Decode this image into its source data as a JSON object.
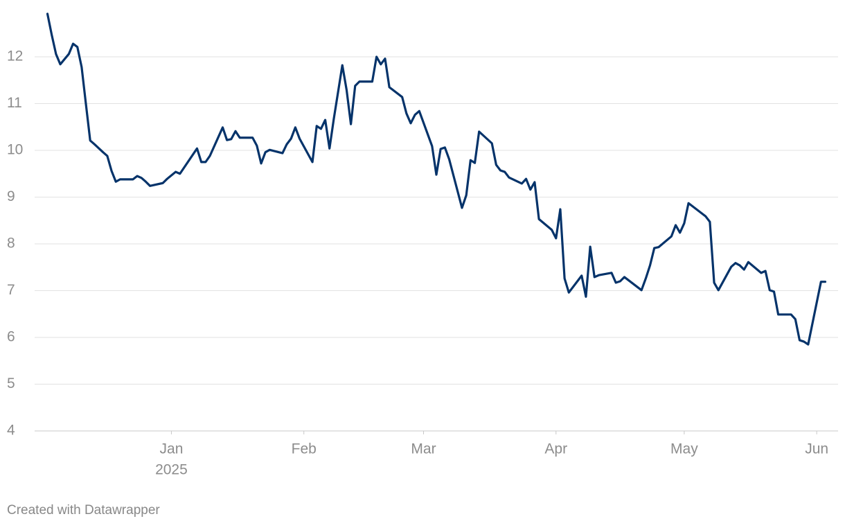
{
  "chart_data": {
    "type": "line",
    "x": [
      -29,
      -28,
      -27,
      -26,
      -24,
      -23,
      -22,
      -21,
      -20,
      -19,
      -18,
      -16,
      -15,
      -14,
      -13,
      -12,
      -11,
      -9,
      -8,
      -7,
      -6,
      -5,
      -2,
      -1,
      1,
      2,
      6,
      7,
      8,
      9,
      12,
      13,
      14,
      15,
      16,
      19,
      20,
      21,
      22,
      23,
      26,
      27,
      28,
      29,
      30,
      33,
      34,
      35,
      36,
      37,
      38,
      40,
      41,
      42,
      43,
      44,
      47,
      48,
      49,
      50,
      51,
      54,
      55,
      56,
      57,
      58,
      61,
      62,
      63,
      64,
      65,
      68,
      69,
      70,
      71,
      72,
      75,
      76,
      77,
      78,
      79,
      82,
      83,
      84,
      85,
      86,
      89,
      90,
      91,
      92,
      93,
      96,
      97,
      98,
      99,
      100,
      103,
      104,
      105,
      106,
      110,
      111,
      112,
      113,
      114,
      117,
      118,
      119,
      120,
      121,
      125,
      126,
      127,
      128,
      131,
      132,
      133,
      134,
      135,
      138,
      139,
      140,
      141,
      142,
      145,
      146,
      147,
      148,
      149,
      152,
      153
    ],
    "values": [
      12.92,
      12.47,
      12.06,
      11.84,
      12.06,
      12.28,
      12.21,
      11.78,
      10.99,
      10.21,
      10.13,
      9.96,
      9.88,
      9.56,
      9.33,
      9.38,
      9.38,
      9.38,
      9.45,
      9.41,
      9.33,
      9.24,
      9.3,
      9.39,
      9.54,
      9.5,
      10.04,
      9.75,
      9.75,
      9.88,
      10.49,
      10.22,
      10.24,
      10.41,
      10.27,
      10.27,
      10.1,
      9.72,
      9.96,
      10.01,
      9.94,
      10.13,
      10.25,
      10.49,
      10.25,
      9.75,
      10.52,
      10.46,
      10.65,
      10.04,
      10.67,
      11.82,
      11.29,
      10.56,
      11.38,
      11.47,
      11.47,
      12.0,
      11.84,
      11.96,
      11.35,
      11.14,
      10.79,
      10.58,
      10.76,
      10.84,
      10.09,
      9.48,
      10.03,
      10.06,
      9.81,
      8.77,
      9.04,
      9.79,
      9.73,
      10.4,
      10.15,
      9.69,
      9.57,
      9.54,
      9.42,
      9.29,
      9.39,
      9.16,
      9.32,
      8.53,
      8.3,
      8.12,
      8.74,
      7.26,
      6.96,
      7.32,
      6.87,
      7.94,
      7.29,
      7.33,
      7.38,
      7.17,
      7.2,
      7.29,
      7.01,
      7.26,
      7.54,
      7.91,
      7.93,
      8.16,
      8.4,
      8.24,
      8.44,
      8.87,
      8.59,
      8.47,
      7.17,
      7.01,
      7.51,
      7.59,
      7.54,
      7.45,
      7.61,
      7.38,
      7.42,
      7.01,
      6.98,
      6.49,
      6.49,
      6.39,
      5.94,
      5.91,
      5.85,
      7.19,
      7.19
    ],
    "color": "#05336a",
    "xlim": [
      -32,
      156
    ],
    "xticks": [
      {
        "value": 0,
        "label": "Jan",
        "sublabel": "2025"
      },
      {
        "value": 31,
        "label": "Feb"
      },
      {
        "value": 59,
        "label": "Mar"
      },
      {
        "value": 90,
        "label": "Apr"
      },
      {
        "value": 120,
        "label": "May"
      },
      {
        "value": 151,
        "label": "Jun"
      }
    ],
    "ylim": [
      4,
      13
    ],
    "yticks": [
      4,
      5,
      6,
      7,
      8,
      9,
      10,
      11,
      12
    ],
    "grid": true,
    "credit": "Created with Datawrapper"
  }
}
